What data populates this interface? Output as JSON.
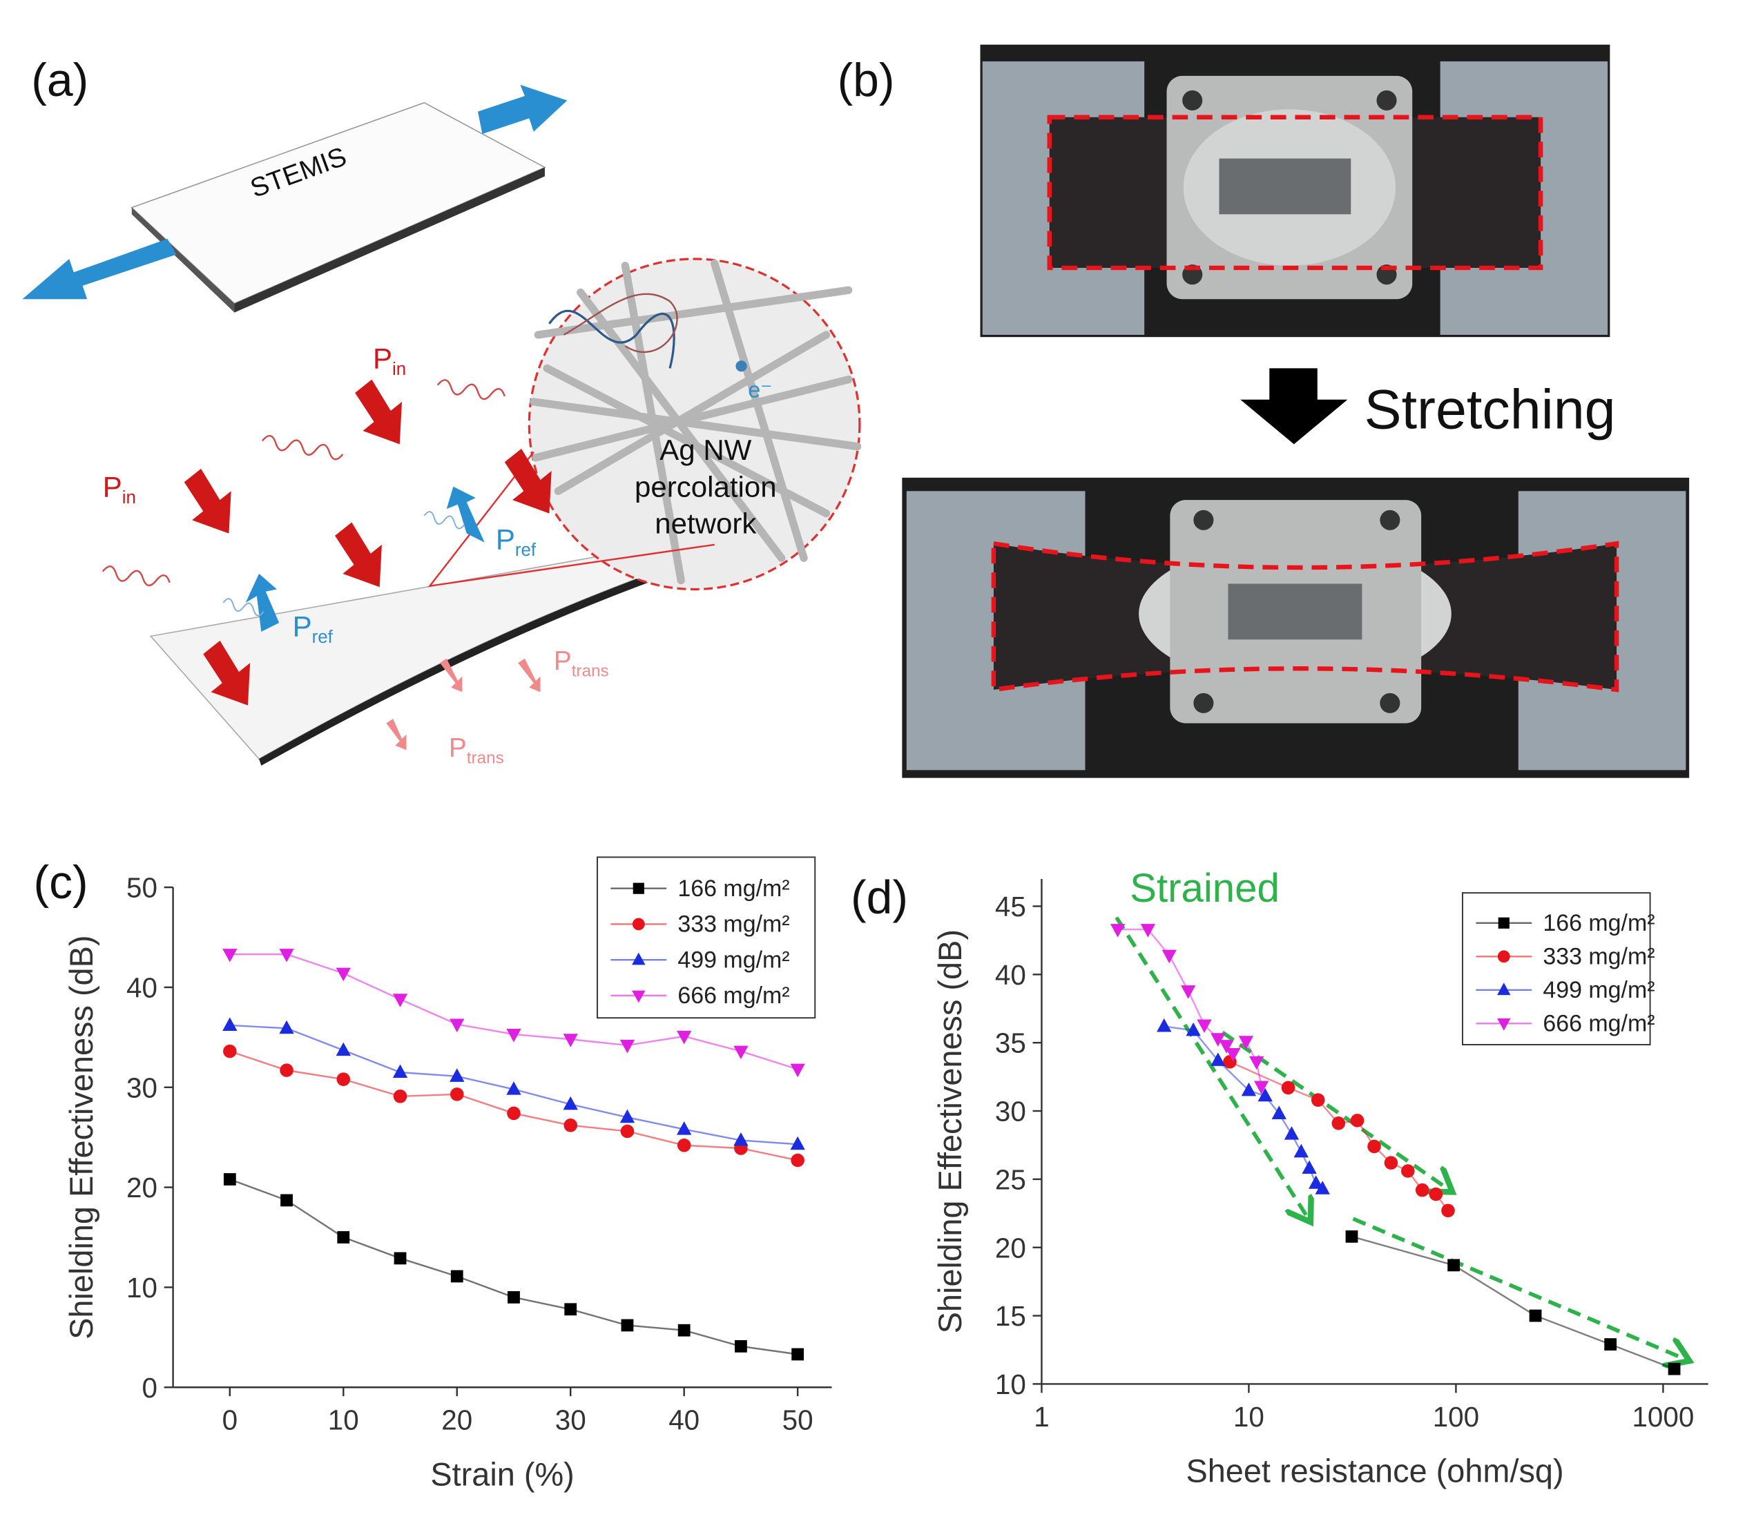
{
  "panel_labels": [
    "(a)",
    "(b)",
    "(c)",
    "(d)"
  ],
  "illustration": {
    "sample": "STEMIS",
    "incident": {
      "base": "P",
      "sub": "in"
    },
    "reflected": {
      "base": "P",
      "sub": "ref"
    },
    "transmitted": {
      "base": "P",
      "sub": "trans"
    },
    "electron": "e⁻",
    "inset_label": [
      "Ag NW",
      "percolation",
      "network"
    ]
  },
  "photo": {
    "arrow_label": "Stretching"
  },
  "chart_data": [
    {
      "type": "line",
      "x_label": "Strain (%)",
      "y_label": "Shielding Effectiveness (dB)",
      "x": [
        0,
        5,
        10,
        15,
        20,
        25,
        30,
        35,
        40,
        45,
        50
      ],
      "xlim": [
        -5,
        53
      ],
      "xticks": [
        0,
        10,
        20,
        30,
        40,
        50
      ],
      "ylim": [
        0,
        50
      ],
      "yticks": [
        0,
        10,
        20,
        30,
        40,
        50
      ],
      "legend": "upper right",
      "series": [
        {
          "name": "166 mg/m²",
          "color": "#000000",
          "marker": "square",
          "values": [
            20.8,
            18.7,
            15.0,
            12.9,
            11.1,
            9.0,
            7.8,
            6.2,
            5.7,
            4.1,
            3.3
          ]
        },
        {
          "name": "333 mg/m²",
          "color": "#e8141c",
          "marker": "circle",
          "values": [
            33.6,
            31.7,
            30.8,
            29.1,
            29.3,
            27.4,
            26.2,
            25.6,
            24.2,
            23.9,
            22.7
          ]
        },
        {
          "name": "499 mg/m²",
          "color": "#1a2be0",
          "marker": "triangle-up",
          "values": [
            36.2,
            35.9,
            33.7,
            31.5,
            31.1,
            29.8,
            28.3,
            27.0,
            25.8,
            24.7,
            24.3
          ]
        },
        {
          "name": "666 mg/m²",
          "color": "#e020e0",
          "marker": "triangle-down",
          "values": [
            43.3,
            43.3,
            41.4,
            38.8,
            36.3,
            35.3,
            34.8,
            34.2,
            35.1,
            33.6,
            31.8
          ]
        }
      ]
    },
    {
      "type": "line",
      "x_label": "Sheet resistance (ohm/sq)",
      "y_label": "Shielding Effectiveness (dB)",
      "annotation": "Strained",
      "xscale": "log",
      "xlim": [
        1,
        1650
      ],
      "xticks": [
        1,
        10,
        100,
        1000
      ],
      "ylim": [
        10,
        47
      ],
      "yticks": [
        10,
        15,
        20,
        25,
        30,
        35,
        40,
        45
      ],
      "legend": "upper right",
      "series": [
        {
          "name": "166 mg/m²",
          "color": "#000000",
          "marker": "square",
          "x": [
            31.4,
            97.5,
            242,
            557,
            1132
          ],
          "values": [
            20.8,
            18.7,
            15.0,
            12.9,
            11.1
          ]
        },
        {
          "name": "333 mg/m²",
          "color": "#e8141c",
          "marker": "circle",
          "x": [
            8.1,
            15.5,
            21.6,
            27.1,
            33.4,
            40.3,
            48.6,
            58.6,
            68.8,
            80,
            91.6
          ],
          "values": [
            33.6,
            31.7,
            30.8,
            29.1,
            29.3,
            27.4,
            26.2,
            25.6,
            24.2,
            23.9,
            22.7
          ]
        },
        {
          "name": "499 mg/m²",
          "color": "#1a2be0",
          "marker": "triangle-up",
          "x": [
            3.9,
            5.4,
            7.1,
            10,
            12.0,
            14.0,
            16.1,
            17.9,
            19.6,
            21.1,
            22.7
          ],
          "values": [
            36.2,
            35.9,
            33.7,
            31.5,
            31.1,
            29.8,
            28.3,
            27.0,
            25.8,
            24.7,
            24.3
          ]
        },
        {
          "name": "666 mg/m²",
          "color": "#e020e0",
          "marker": "triangle-down",
          "x": [
            2.33,
            3.26,
            4.13,
            5.1,
            6.1,
            7.1,
            7.8,
            8.4,
            9.7,
            10.9,
            11.5
          ],
          "values": [
            43.3,
            43.3,
            41.4,
            38.8,
            36.3,
            35.3,
            34.8,
            34.2,
            35.1,
            33.6,
            31.8
          ]
        }
      ]
    }
  ]
}
